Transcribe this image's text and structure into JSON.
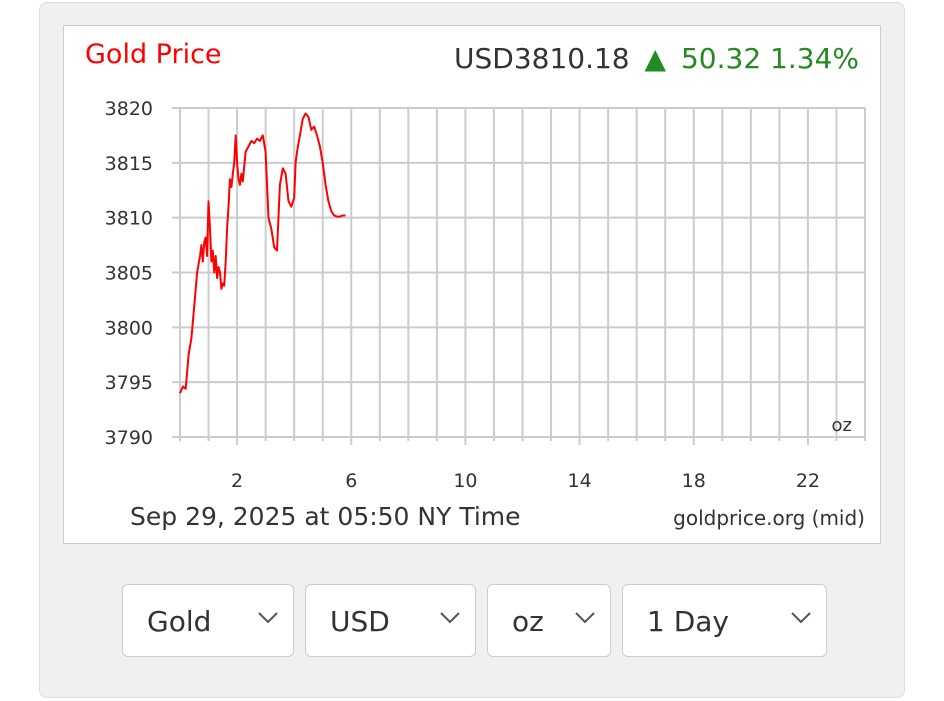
{
  "header": {
    "title": "Gold Price",
    "price": "USD3810.18",
    "change_arrow": "▲",
    "change": "50.32 1.34%",
    "title_color": "#ff0000",
    "up_color": "#228b22"
  },
  "footer": {
    "timestamp": "Sep 29, 2025 at 05:50 NY Time",
    "source": "goldprice.org (mid)",
    "unit_label": "oz"
  },
  "chart_data": {
    "type": "line",
    "title": "Gold Price",
    "xlabel": "",
    "ylabel": "",
    "xlim": [
      0,
      24
    ],
    "ylim": [
      3790,
      3820
    ],
    "x_ticks": [
      2,
      6,
      10,
      14,
      18,
      22
    ],
    "y_ticks": [
      3790,
      3795,
      3800,
      3805,
      3810,
      3815,
      3820
    ],
    "grid": true,
    "x_grid_step": 1,
    "line_color": "#ff0000",
    "series": [
      {
        "name": "",
        "x": [
          0.0,
          0.1,
          0.2,
          0.3,
          0.4,
          0.5,
          0.55,
          0.6,
          0.7,
          0.75,
          0.8,
          0.85,
          0.9,
          0.95,
          1.0,
          1.05,
          1.1,
          1.15,
          1.2,
          1.25,
          1.3,
          1.35,
          1.4,
          1.45,
          1.5,
          1.55,
          1.6,
          1.65,
          1.7,
          1.75,
          1.8,
          1.85,
          1.9,
          1.95,
          2.0,
          2.05,
          2.1,
          2.15,
          2.2,
          2.3,
          2.4,
          2.5,
          2.6,
          2.7,
          2.8,
          2.9,
          3.0,
          3.1,
          3.2,
          3.3,
          3.4,
          3.5,
          3.6,
          3.7,
          3.8,
          3.9,
          4.0,
          4.05,
          4.1,
          4.2,
          4.3,
          4.4,
          4.5,
          4.6,
          4.7,
          4.8,
          4.9,
          5.0,
          5.1,
          5.2,
          5.3,
          5.4,
          5.5,
          5.6,
          5.7,
          5.8
        ],
        "y": [
          3794.0,
          3794.6,
          3794.4,
          3797.5,
          3799.0,
          3802.0,
          3803.5,
          3805.0,
          3806.5,
          3807.5,
          3806.0,
          3807.8,
          3808.2,
          3806.5,
          3811.5,
          3809.0,
          3806.0,
          3807.0,
          3805.0,
          3806.5,
          3804.5,
          3805.5,
          3805.0,
          3803.5,
          3804.0,
          3803.8,
          3806.0,
          3809.0,
          3811.0,
          3813.5,
          3812.8,
          3814.0,
          3815.0,
          3817.5,
          3815.0,
          3813.5,
          3813.0,
          3814.0,
          3813.3,
          3816.0,
          3816.5,
          3817.0,
          3816.8,
          3817.2,
          3817.0,
          3817.5,
          3816.0,
          3810.0,
          3809.0,
          3807.3,
          3807.0,
          3813.0,
          3814.5,
          3814.0,
          3811.5,
          3811.0,
          3811.8,
          3815.0,
          3816.0,
          3817.5,
          3819.0,
          3819.5,
          3819.2,
          3818.0,
          3818.3,
          3817.5,
          3816.5,
          3815.0,
          3813.0,
          3811.5,
          3810.6,
          3810.2,
          3810.1,
          3810.1,
          3810.2,
          3810.2
        ]
      }
    ]
  },
  "controls": [
    {
      "label": "Gold"
    },
    {
      "label": "USD"
    },
    {
      "label": "oz"
    },
    {
      "label": "1 Day"
    }
  ]
}
